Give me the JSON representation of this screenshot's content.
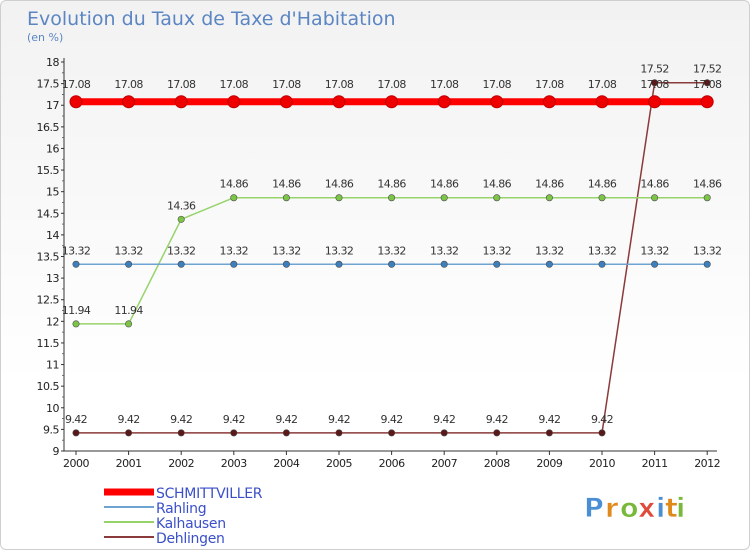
{
  "chart_data": {
    "type": "line",
    "title": "Evolution du Taux de Taxe d'Habitation",
    "subtitle": "(en %)",
    "categories": [
      "2000",
      "2001",
      "2002",
      "2003",
      "2004",
      "2005",
      "2006",
      "2007",
      "2008",
      "2009",
      "2010",
      "2011",
      "2012"
    ],
    "ylim": [
      9,
      18
    ],
    "ytick_step": 0.5,
    "yticks": [
      "9",
      "9.5",
      "10",
      "10.5",
      "11",
      "11.5",
      "12",
      "12.5",
      "13",
      "13.5",
      "14",
      "14.5",
      "15",
      "15.5",
      "16",
      "16.5",
      "17",
      "17.5",
      "18"
    ],
    "grid": false,
    "series": [
      {
        "name": "SCHMITTVILLER",
        "color": "#ff0000",
        "marker_color": "#ee0000",
        "values": [
          17.08,
          17.08,
          17.08,
          17.08,
          17.08,
          17.08,
          17.08,
          17.08,
          17.08,
          17.08,
          17.08,
          17.08,
          17.08
        ],
        "labels": [
          "17.08",
          "17.08",
          "17.08",
          "17.08",
          "17.08",
          "17.08",
          "17.08",
          "17.08",
          "17.08",
          "17.08",
          "17.08",
          "17.08",
          "17.08"
        ]
      },
      {
        "name": "Rahling",
        "color": "#6ea3d2",
        "marker_color": "#3d7fbd",
        "values": [
          13.32,
          13.32,
          13.32,
          13.32,
          13.32,
          13.32,
          13.32,
          13.32,
          13.32,
          13.32,
          13.32,
          13.32,
          13.32
        ],
        "labels": [
          "13.32",
          "13.32",
          "13.32",
          "13.32",
          "13.32",
          "13.32",
          "13.32",
          "13.32",
          "13.32",
          "13.32",
          "13.32",
          "13.32",
          "13.32"
        ]
      },
      {
        "name": "Kalhausen",
        "color": "#97d36b",
        "marker_color": "#7cc547",
        "values": [
          11.94,
          11.94,
          14.36,
          14.86,
          14.86,
          14.86,
          14.86,
          14.86,
          14.86,
          14.86,
          14.86,
          14.86,
          14.86
        ],
        "labels": [
          "11.94",
          "11.94",
          "14.36",
          "14.86",
          "14.86",
          "14.86",
          "14.86",
          "14.86",
          "14.86",
          "14.86",
          "14.86",
          "14.86",
          "14.86"
        ]
      },
      {
        "name": "Dehlingen",
        "color": "#8a3a3a",
        "marker_color": "#5a1818",
        "values": [
          9.42,
          9.42,
          9.42,
          9.42,
          9.42,
          9.42,
          9.42,
          9.42,
          9.42,
          9.42,
          9.42,
          17.52,
          17.52
        ],
        "labels": [
          "9.42",
          "9.42",
          "9.42",
          "9.42",
          "9.42",
          "9.42",
          "9.42",
          "9.42",
          "9.42",
          "9.42",
          "9.42",
          "17.52",
          "17.52"
        ]
      }
    ],
    "legend_position": "bottom-left"
  },
  "logo": {
    "text": [
      "P",
      "r",
      "o",
      "x",
      "i",
      "t",
      "i"
    ],
    "colors": [
      "#4a8fd4",
      "#e08a1c",
      "#79b83a",
      "#e04a3a",
      "#4a8fd4",
      "#e08a1c",
      "#79b83a"
    ]
  }
}
